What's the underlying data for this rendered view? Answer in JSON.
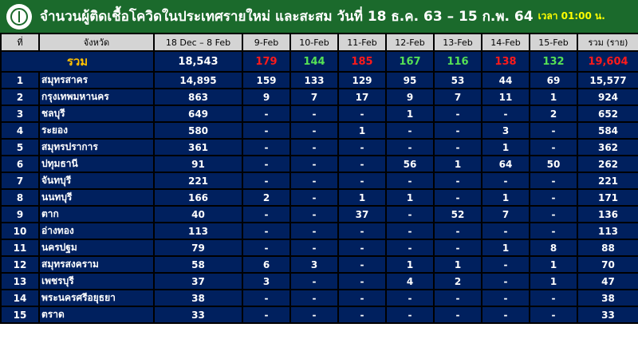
{
  "header": {
    "title": "จำนวนผู้ติดเชื้อโควิดในประเทศรายใหม่ และสะสม วันที่ 18 ธ.ค. 63 – 15 ก.พ. 64",
    "time": "เวลา 01:00 น.",
    "logo": "ministry-of-public-health-logo"
  },
  "colors": {
    "header_bg": "#1b6a2c",
    "table_bg": "#00205e",
    "red": "#ff1a1a",
    "green": "#55e055",
    "yellow": "#ffc000"
  },
  "columns": [
    "ที่",
    "จังหวัด",
    "18 Dec – 8 Feb",
    "9-Feb",
    "10-Feb",
    "11-Feb",
    "12-Feb",
    "13-Feb",
    "14-Feb",
    "15-Feb",
    "รวม (ราย)"
  ],
  "total": {
    "label": "รวม",
    "base": "18,543",
    "daily": [
      [
        "179",
        "r"
      ],
      [
        "144",
        "g"
      ],
      [
        "185",
        "r"
      ],
      [
        "167",
        "g"
      ],
      [
        "116",
        "g"
      ],
      [
        "138",
        "r"
      ],
      [
        "132",
        "g"
      ]
    ],
    "sum": "19,604"
  },
  "rows": [
    {
      "no": "1",
      "province": "สมุทรสาคร",
      "base": "14,895",
      "daily": [
        [
          "159",
          "g"
        ],
        [
          "133",
          "g"
        ],
        [
          "129",
          "g"
        ],
        [
          "95",
          "g"
        ],
        [
          "53",
          "g"
        ],
        [
          "44",
          "g"
        ],
        [
          "69",
          "r"
        ]
      ],
      "sum": "15,577"
    },
    {
      "no": "2",
      "province": "กรุงเทพมหานคร",
      "base": "863",
      "daily": [
        [
          "9",
          "r"
        ],
        [
          "7",
          "g"
        ],
        [
          "17",
          "r"
        ],
        [
          "9",
          "g"
        ],
        [
          "7",
          "g"
        ],
        [
          "11",
          "r"
        ],
        [
          "1",
          "g"
        ]
      ],
      "sum": "924"
    },
    {
      "no": "3",
      "province": "ชลบุรี",
      "base": "649",
      "daily": [
        [
          "-",
          "y"
        ],
        [
          "-",
          "y"
        ],
        [
          "-",
          "y"
        ],
        [
          "1",
          "r"
        ],
        [
          "-",
          "g"
        ],
        [
          "-",
          "y"
        ],
        [
          "2",
          "r"
        ]
      ],
      "sum": "652"
    },
    {
      "no": "4",
      "province": "ระยอง",
      "base": "580",
      "daily": [
        [
          "-",
          "y"
        ],
        [
          "-",
          "y"
        ],
        [
          "1",
          "r"
        ],
        [
          "-",
          "g"
        ],
        [
          "-",
          "g"
        ],
        [
          "3",
          "r"
        ],
        [
          "-",
          "g"
        ]
      ],
      "sum": "584"
    },
    {
      "no": "5",
      "province": "สมุทรปราการ",
      "base": "361",
      "daily": [
        [
          "-",
          "y"
        ],
        [
          "-",
          "y"
        ],
        [
          "-",
          "y"
        ],
        [
          "-",
          "y"
        ],
        [
          "-",
          "y"
        ],
        [
          "1",
          "r"
        ],
        [
          "-",
          "g"
        ]
      ],
      "sum": "362"
    },
    {
      "no": "6",
      "province": "ปทุมธานี",
      "base": "91",
      "daily": [
        [
          "-",
          "g"
        ],
        [
          "-",
          "y"
        ],
        [
          "-",
          "y"
        ],
        [
          "56",
          "r"
        ],
        [
          "1",
          "g"
        ],
        [
          "64",
          "r"
        ],
        [
          "50",
          "g"
        ]
      ],
      "sum": "262"
    },
    {
      "no": "7",
      "province": "จันทบุรี",
      "base": "221",
      "daily": [
        [
          "-",
          "y"
        ],
        [
          "-",
          "y"
        ],
        [
          "-",
          "y"
        ],
        [
          "-",
          "y"
        ],
        [
          "-",
          "y"
        ],
        [
          "-",
          "y"
        ],
        [
          "-",
          "y"
        ]
      ],
      "sum": "221"
    },
    {
      "no": "8",
      "province": "นนทบุรี",
      "base": "166",
      "daily": [
        [
          "2",
          "r"
        ],
        [
          "-",
          "g"
        ],
        [
          "1",
          "r"
        ],
        [
          "1",
          "y"
        ],
        [
          "-",
          "g"
        ],
        [
          "1",
          "r"
        ],
        [
          "-",
          "g"
        ]
      ],
      "sum": "171"
    },
    {
      "no": "9",
      "province": "ตาก",
      "base": "40",
      "daily": [
        [
          "-",
          "y"
        ],
        [
          "-",
          "y"
        ],
        [
          "37",
          "r"
        ],
        [
          "-",
          "g"
        ],
        [
          "52",
          "r"
        ],
        [
          "7",
          "g"
        ],
        [
          "-",
          "g"
        ]
      ],
      "sum": "136"
    },
    {
      "no": "10",
      "province": "อ่างทอง",
      "base": "113",
      "daily": [
        [
          "-",
          "y"
        ],
        [
          "-",
          "y"
        ],
        [
          "-",
          "y"
        ],
        [
          "-",
          "y"
        ],
        [
          "-",
          "y"
        ],
        [
          "-",
          "y"
        ],
        [
          "-",
          "y"
        ]
      ],
      "sum": "113"
    },
    {
      "no": "11",
      "province": "นครปฐม",
      "base": "79",
      "daily": [
        [
          "-",
          "g"
        ],
        [
          "-",
          "y"
        ],
        [
          "-",
          "y"
        ],
        [
          "-",
          "y"
        ],
        [
          "-",
          "y"
        ],
        [
          "1",
          "r"
        ],
        [
          "8",
          "r"
        ]
      ],
      "sum": "88"
    },
    {
      "no": "12",
      "province": "สมุทรสงคราม",
      "base": "58",
      "daily": [
        [
          "6",
          "r"
        ],
        [
          "3",
          "g"
        ],
        [
          "-",
          "g"
        ],
        [
          "1",
          "r"
        ],
        [
          "1",
          "y"
        ],
        [
          "-",
          "g"
        ],
        [
          "1",
          "r"
        ]
      ],
      "sum": "70"
    },
    {
      "no": "13",
      "province": "เพชรบุรี",
      "base": "37",
      "daily": [
        [
          "3",
          "r"
        ],
        [
          "-",
          "g"
        ],
        [
          "-",
          "y"
        ],
        [
          "4",
          "r"
        ],
        [
          "2",
          "g"
        ],
        [
          "-",
          "g"
        ],
        [
          "1",
          "r"
        ]
      ],
      "sum": "47"
    },
    {
      "no": "14",
      "province": "พระนครศรีอยุธยา",
      "base": "38",
      "daily": [
        [
          "-",
          "y"
        ],
        [
          "-",
          "y"
        ],
        [
          "-",
          "y"
        ],
        [
          "-",
          "y"
        ],
        [
          "-",
          "y"
        ],
        [
          "-",
          "y"
        ],
        [
          "-",
          "y"
        ]
      ],
      "sum": "38"
    },
    {
      "no": "15",
      "province": "ตราด",
      "base": "33",
      "daily": [
        [
          "-",
          "y"
        ],
        [
          "-",
          "y"
        ],
        [
          "-",
          "y"
        ],
        [
          "-",
          "y"
        ],
        [
          "-",
          "y"
        ],
        [
          "-",
          "y"
        ],
        [
          "-",
          "y"
        ]
      ],
      "sum": "33"
    }
  ]
}
